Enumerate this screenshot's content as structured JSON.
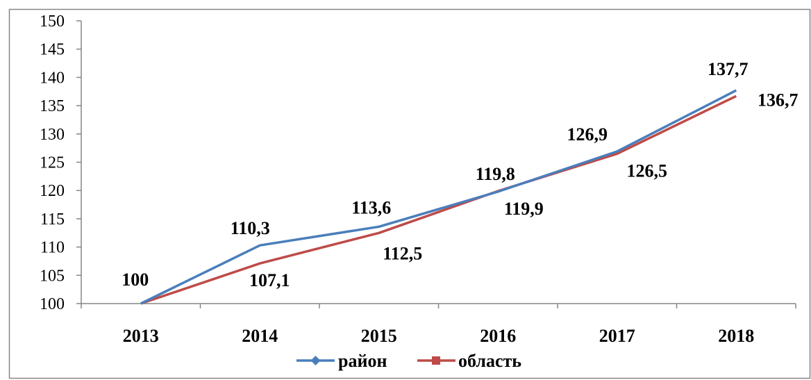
{
  "chart_data": {
    "type": "line",
    "title": "",
    "xlabel": "",
    "ylabel": "",
    "categories": [
      "2013",
      "2014",
      "2015",
      "2016",
      "2017",
      "2018"
    ],
    "ylim": [
      100,
      150
    ],
    "yticks": [
      "100",
      "105",
      "110",
      "115",
      "120",
      "125",
      "130",
      "135",
      "140",
      "145",
      "150"
    ],
    "grid": false,
    "legend_position": "bottom",
    "series": [
      {
        "name": "район",
        "color": "#4a7ebb",
        "marker": "diamond",
        "values": [
          100,
          110.3,
          113.6,
          119.8,
          126.9,
          137.7
        ],
        "labels": [
          "100",
          "110,3",
          "113,6",
          "119,8",
          "126,9",
          "137,7"
        ]
      },
      {
        "name": "область",
        "color": "#be4b48",
        "marker": "square",
        "values": [
          100,
          107.1,
          112.5,
          119.9,
          126.5,
          136.7
        ],
        "labels": [
          "",
          "107,1",
          "112,5",
          "119,9",
          "126,5",
          "136,7"
        ]
      }
    ]
  }
}
